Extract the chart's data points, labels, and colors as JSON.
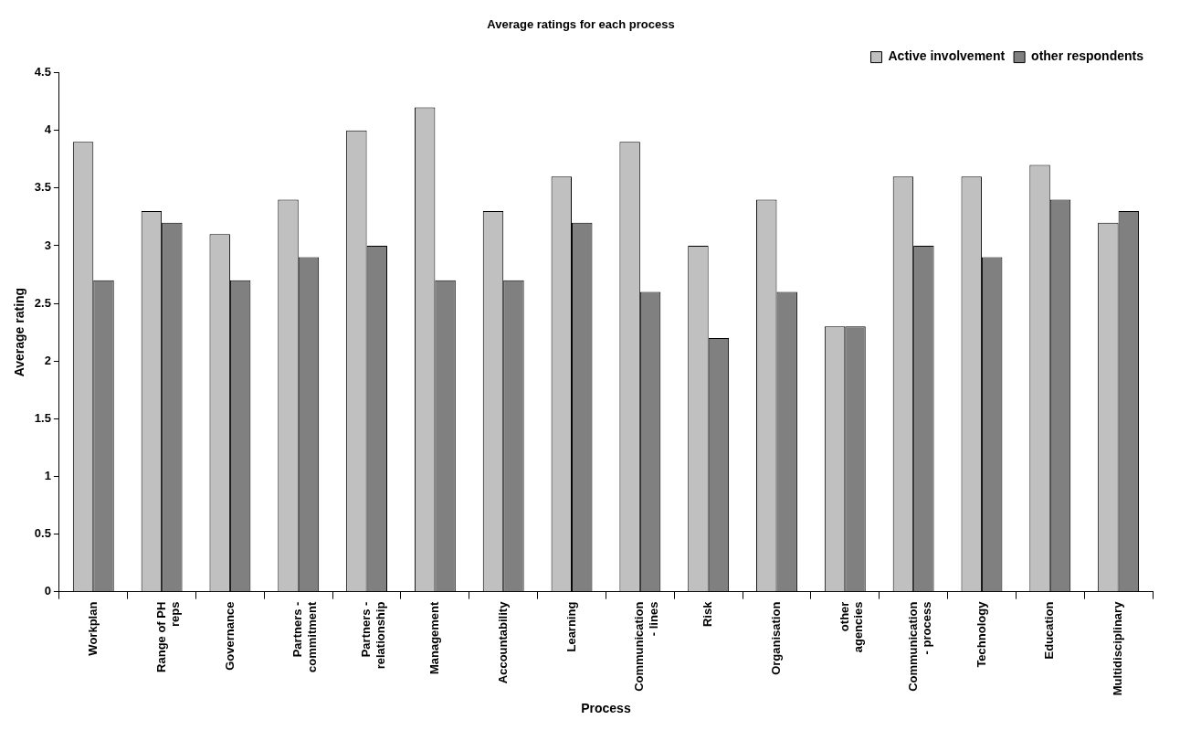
{
  "chart_data": {
    "type": "bar",
    "title": "Average ratings for each process",
    "xlabel": "Process",
    "ylabel": "Average rating",
    "categories": [
      "Workplan",
      "Range of PH reps",
      "Governance",
      "Partners - commitment",
      "Partners - relationship",
      "Management",
      "Accountability",
      "Learning",
      "Communication - lines",
      "Risk",
      "Organisation",
      "other agencies",
      "Communication - process",
      "Technology",
      "Education",
      "Multidisciplinary"
    ],
    "series": [
      {
        "name": "Active involvement",
        "color": "#c0c0c0",
        "values": [
          3.9,
          3.3,
          3.1,
          3.4,
          4.0,
          4.2,
          3.3,
          3.6,
          3.9,
          3.0,
          3.4,
          2.3,
          3.6,
          3.6,
          3.7,
          3.2
        ]
      },
      {
        "name": "other respondents",
        "color": "#808080",
        "values": [
          2.7,
          3.2,
          2.7,
          2.9,
          3.0,
          2.7,
          2.7,
          3.2,
          2.6,
          2.2,
          2.6,
          2.3,
          3.0,
          2.9,
          3.4,
          3.3
        ]
      }
    ],
    "ylim": [
      0,
      4.5
    ],
    "yticks": [
      0,
      0.5,
      1,
      1.5,
      2,
      2.5,
      3,
      3.5,
      4,
      4.5
    ],
    "grid": false,
    "legend": "top right"
  }
}
